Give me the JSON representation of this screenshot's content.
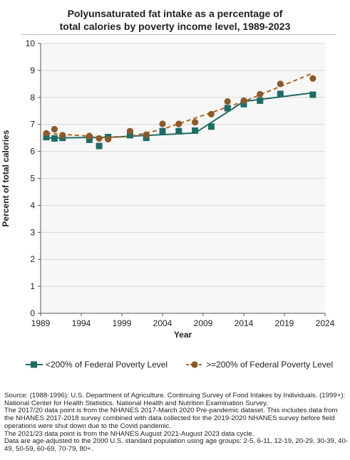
{
  "chart_data": {
    "type": "line",
    "title": "Polyunsaturated fat intake as a percentage of total calories by poverty income level, 1989-2023",
    "title_lines": [
      "Polyunsaturated fat intake as a percentage of",
      "total calories by poverty income level, 1989-2023"
    ],
    "xlabel": "Year",
    "ylabel": "Percent of total calories",
    "xlim": [
      1989,
      2024
    ],
    "ylim": [
      0,
      10
    ],
    "x_ticks": [
      1989,
      1994,
      1999,
      2004,
      2009,
      2014,
      2019,
      2024
    ],
    "y_ticks": [
      0,
      1,
      2,
      3,
      4,
      5,
      6,
      7,
      8,
      9,
      10
    ],
    "grid": "horizontal",
    "legend_position": "bottom",
    "series": [
      {
        "name": "<200% of Federal Poverty Level",
        "color": "#1f6b66",
        "marker": "square",
        "points": [
          {
            "x": 1989.7,
            "y": 6.53
          },
          {
            "x": 1990.7,
            "y": 6.48
          },
          {
            "x": 1991.7,
            "y": 6.5
          },
          {
            "x": 1995,
            "y": 6.43
          },
          {
            "x": 1996.2,
            "y": 6.2
          },
          {
            "x": 1997.3,
            "y": 6.53
          },
          {
            "x": 2000,
            "y": 6.6
          },
          {
            "x": 2002,
            "y": 6.5
          },
          {
            "x": 2004,
            "y": 6.75
          },
          {
            "x": 2006,
            "y": 6.75
          },
          {
            "x": 2008,
            "y": 6.77
          },
          {
            "x": 2010,
            "y": 6.92
          },
          {
            "x": 2012,
            "y": 7.6
          },
          {
            "x": 2014,
            "y": 7.75
          },
          {
            "x": 2016,
            "y": 7.88
          },
          {
            "x": 2018.5,
            "y": 8.13
          },
          {
            "x": 2022.5,
            "y": 8.1
          }
        ],
        "trend": [
          {
            "x": 1989.7,
            "y": 6.5
          },
          {
            "x": 1997.3,
            "y": 6.52
          },
          {
            "x": 2008,
            "y": 6.68
          },
          {
            "x": 2014,
            "y": 7.85
          },
          {
            "x": 2022.5,
            "y": 8.17
          }
        ]
      },
      {
        "name": ">=200% of Federal Poverty Level",
        "color": "#8b5a2b",
        "line_color": "#b5651d",
        "marker": "circle",
        "points": [
          {
            "x": 1989.7,
            "y": 6.67
          },
          {
            "x": 1990.7,
            "y": 6.82
          },
          {
            "x": 1991.7,
            "y": 6.6
          },
          {
            "x": 1995,
            "y": 6.57
          },
          {
            "x": 1996.2,
            "y": 6.48
          },
          {
            "x": 1997.3,
            "y": 6.45
          },
          {
            "x": 2000,
            "y": 6.75
          },
          {
            "x": 2002,
            "y": 6.62
          },
          {
            "x": 2004,
            "y": 7.02
          },
          {
            "x": 2006,
            "y": 7.02
          },
          {
            "x": 2008,
            "y": 7.08
          },
          {
            "x": 2010,
            "y": 7.38
          },
          {
            "x": 2012,
            "y": 7.85
          },
          {
            "x": 2014,
            "y": 7.88
          },
          {
            "x": 2016,
            "y": 8.12
          },
          {
            "x": 2018.5,
            "y": 8.5
          },
          {
            "x": 2022.5,
            "y": 8.7
          }
        ],
        "trend": [
          {
            "x": 1989.7,
            "y": 6.67
          },
          {
            "x": 1997.3,
            "y": 6.52
          },
          {
            "x": 2000,
            "y": 6.55
          },
          {
            "x": 2004,
            "y": 6.82
          },
          {
            "x": 2014,
            "y": 7.85
          },
          {
            "x": 2022.5,
            "y": 8.9
          }
        ]
      }
    ]
  },
  "source_notes": [
    "Source: (1988-1996): U.S. Department of Agriculture. Continuing Survey of Food Intakes by Individuals. (1999+): National Center for Health Statistics. National Health and Nutrition Examination Survey.",
    "The 2017/20 data point is from the NHANES 2017-March 2020 Pre-pandemic dataset. This includes data from the NHANES 2017-2018 survey combined with data collected for the 2019-2020 NHANES survey before field operations were shut down due to the Covid pandemic.",
    "The 2021/23 data point is from the NHANES August 2021-August 2023 data cycle.",
    "Data are age-adjusted to the 2000 U.S. standard population using age groups: 2-5, 6-11, 12-19, 20-29, 30-39, 40-49, 50-59, 60-69, 70-79, 80+."
  ]
}
